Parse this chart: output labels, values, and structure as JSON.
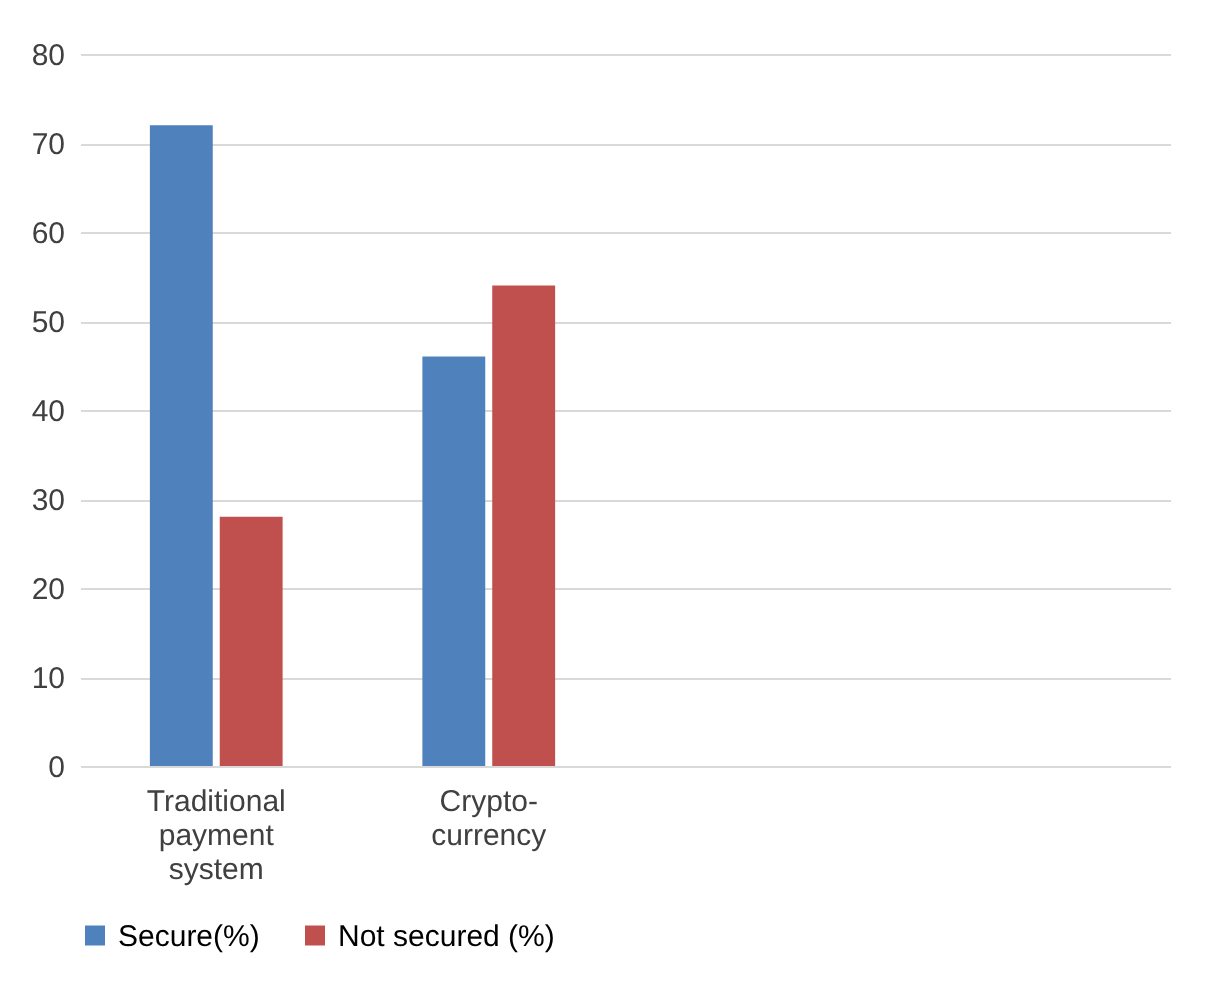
{
  "chart_data": {
    "type": "bar",
    "categories": [
      "Traditional payment system",
      "Crypto-currency",
      null,
      null
    ],
    "series": [
      {
        "name": "Secure(%)",
        "color": "#4f81bd",
        "values": [
          72,
          46,
          null,
          null
        ]
      },
      {
        "name": "Not secured (%)",
        "color": "#c0504d",
        "values": [
          28,
          54,
          null,
          null
        ]
      }
    ],
    "ylim": [
      0,
      80
    ],
    "yticks": [
      0,
      10,
      20,
      30,
      40,
      50,
      60,
      70,
      80
    ],
    "grid": "y",
    "legend": "bottom"
  }
}
